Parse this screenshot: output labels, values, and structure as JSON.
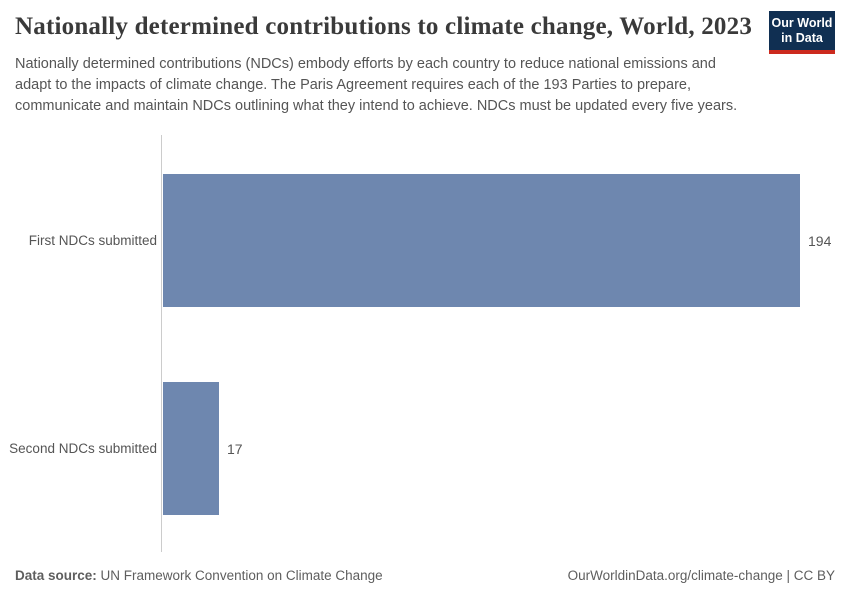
{
  "header": {
    "title": "Nationally determined contributions to climate change, World, 2023",
    "subtitle": "Nationally determined contributions (NDCs) embody efforts by each country to reduce national emissions and adapt to the impacts of climate change. The Paris Agreement requires each of the 193 Parties to prepare, communicate and maintain NDCs outlining what they intend to achieve. NDCs must be updated every five years.",
    "logo": {
      "line1": "Our World",
      "line2": "in Data"
    }
  },
  "chart_data": {
    "type": "bar",
    "orientation": "horizontal",
    "categories": [
      "First NDCs submitted",
      "Second NDCs submitted"
    ],
    "values": [
      194,
      17
    ],
    "value_labels": [
      "194",
      "17"
    ],
    "xlim": [
      0,
      194
    ],
    "grid": false,
    "legend": "none",
    "bar_color": "#6e87af",
    "title": "Nationally determined contributions to climate change, World, 2023",
    "xlabel": "",
    "ylabel": ""
  },
  "footer": {
    "source_label": "Data source:",
    "source_name": "UN Framework Convention on Climate Change",
    "credit": "OurWorldinData.org/climate-change | CC BY"
  },
  "colors": {
    "bar": "#6e87af",
    "logo_navy": "#102f52",
    "logo_red": "#cc2a1e",
    "text_gray": "#555555",
    "title_text": "#3a3a3a",
    "axis_line": "#cccccc"
  }
}
